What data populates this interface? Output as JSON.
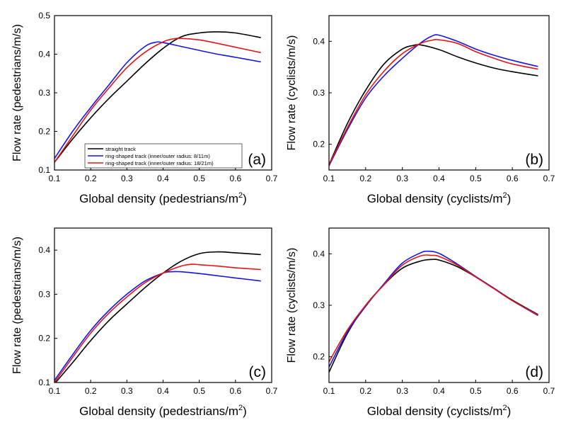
{
  "chart_data": [
    {
      "type": "line",
      "panel_label": "(a)",
      "xlabel": "Global density (pedestrians/m",
      "xlabel_sup": "2",
      "xlabel_end": ")",
      "ylabel": "Flow rate (pedestrians/m/s)",
      "xlim": [
        0.1,
        0.7
      ],
      "ylim": [
        0.1,
        0.5
      ],
      "xticks": [
        "0.1",
        "0.2",
        "0.3",
        "0.4",
        "0.5",
        "0.6",
        "0.7"
      ],
      "yticks": [
        "0.1",
        "0.2",
        "0.3",
        "0.4",
        "0.5"
      ],
      "legend": "lower-center",
      "series": [
        {
          "name": "straight track",
          "color": "#000000",
          "x": [
            0.1,
            0.15,
            0.2,
            0.25,
            0.3,
            0.35,
            0.4,
            0.45,
            0.5,
            0.55,
            0.6,
            0.67
          ],
          "y": [
            0.12,
            0.18,
            0.235,
            0.285,
            0.33,
            0.375,
            0.415,
            0.445,
            0.455,
            0.458,
            0.455,
            0.443
          ]
        },
        {
          "name": "ring-shaped track (inner/outer radius: 8/11m)",
          "color": "#1515e6",
          "x": [
            0.1,
            0.15,
            0.2,
            0.25,
            0.3,
            0.35,
            0.38,
            0.4,
            0.45,
            0.5,
            0.55,
            0.6,
            0.67
          ],
          "y": [
            0.13,
            0.2,
            0.262,
            0.32,
            0.378,
            0.42,
            0.431,
            0.43,
            0.42,
            0.41,
            0.4,
            0.392,
            0.38
          ]
        },
        {
          "name": "ring-shaped track (inner/outer radius: 18/21m)",
          "color": "#e61515",
          "x": [
            0.1,
            0.15,
            0.2,
            0.25,
            0.3,
            0.35,
            0.4,
            0.43,
            0.45,
            0.5,
            0.55,
            0.6,
            0.67
          ],
          "y": [
            0.12,
            0.188,
            0.255,
            0.312,
            0.365,
            0.405,
            0.432,
            0.44,
            0.441,
            0.437,
            0.428,
            0.418,
            0.404
          ]
        }
      ]
    },
    {
      "type": "line",
      "panel_label": "(b)",
      "xlabel": "Global density (cyclists/m",
      "xlabel_sup": "2",
      "xlabel_end": ")",
      "ylabel": "Flow rate (cyclists/m/s)",
      "xlim": [
        0.1,
        0.7
      ],
      "ylim": [
        0.15,
        0.45
      ],
      "xticks": [
        "0.1",
        "0.2",
        "0.3",
        "0.4",
        "0.5",
        "0.6",
        "0.7"
      ],
      "yticks": [
        "0.2",
        "0.3",
        "0.4"
      ],
      "series": [
        {
          "color": "#000000",
          "x": [
            0.1,
            0.15,
            0.2,
            0.25,
            0.3,
            0.33,
            0.35,
            0.4,
            0.45,
            0.5,
            0.55,
            0.6,
            0.67
          ],
          "y": [
            0.16,
            0.24,
            0.305,
            0.356,
            0.385,
            0.392,
            0.393,
            0.384,
            0.37,
            0.358,
            0.348,
            0.341,
            0.333
          ]
        },
        {
          "color": "#1515e6",
          "x": [
            0.1,
            0.15,
            0.2,
            0.25,
            0.3,
            0.35,
            0.38,
            0.4,
            0.45,
            0.5,
            0.55,
            0.6,
            0.67
          ],
          "y": [
            0.158,
            0.228,
            0.29,
            0.333,
            0.367,
            0.397,
            0.41,
            0.412,
            0.4,
            0.385,
            0.373,
            0.363,
            0.351
          ]
        },
        {
          "color": "#e61515",
          "x": [
            0.1,
            0.15,
            0.2,
            0.25,
            0.3,
            0.35,
            0.38,
            0.4,
            0.45,
            0.5,
            0.55,
            0.6,
            0.67
          ],
          "y": [
            0.16,
            0.232,
            0.296,
            0.342,
            0.376,
            0.396,
            0.402,
            0.403,
            0.396,
            0.38,
            0.367,
            0.356,
            0.346
          ]
        }
      ]
    },
    {
      "type": "line",
      "panel_label": "(c)",
      "xlabel": "Global density (pedestrians/m",
      "xlabel_sup": "2",
      "xlabel_end": ")",
      "ylabel": "Flow rate (pedestrians/m/s)",
      "xlim": [
        0.1,
        0.7
      ],
      "ylim": [
        0.1,
        0.45
      ],
      "xticks": [
        "0.1",
        "0.2",
        "0.3",
        "0.4",
        "0.5",
        "0.6",
        "0.7"
      ],
      "yticks": [
        "0.1",
        "0.2",
        "0.3",
        "0.4"
      ],
      "series": [
        {
          "color": "#000000",
          "x": [
            0.1,
            0.15,
            0.2,
            0.25,
            0.3,
            0.35,
            0.4,
            0.45,
            0.5,
            0.55,
            0.6,
            0.67
          ],
          "y": [
            0.097,
            0.145,
            0.195,
            0.24,
            0.278,
            0.315,
            0.348,
            0.375,
            0.392,
            0.396,
            0.394,
            0.39
          ]
        },
        {
          "color": "#1515e6",
          "x": [
            0.1,
            0.15,
            0.2,
            0.25,
            0.3,
            0.35,
            0.4,
            0.42,
            0.45,
            0.5,
            0.55,
            0.6,
            0.67
          ],
          "y": [
            0.105,
            0.163,
            0.218,
            0.263,
            0.3,
            0.33,
            0.348,
            0.351,
            0.351,
            0.347,
            0.342,
            0.337,
            0.33
          ]
        },
        {
          "color": "#e61515",
          "x": [
            0.1,
            0.15,
            0.2,
            0.25,
            0.3,
            0.35,
            0.4,
            0.45,
            0.48,
            0.5,
            0.55,
            0.6,
            0.67
          ],
          "y": [
            0.1,
            0.157,
            0.212,
            0.257,
            0.294,
            0.326,
            0.348,
            0.364,
            0.368,
            0.367,
            0.364,
            0.36,
            0.356
          ]
        }
      ]
    },
    {
      "type": "line",
      "panel_label": "(d)",
      "xlabel": "Global density (cyclists/m",
      "xlabel_sup": "2",
      "xlabel_end": ")",
      "ylabel": "Flow rate (cyclists/m/s)",
      "xlim": [
        0.1,
        0.7
      ],
      "ylim": [
        0.15,
        0.45
      ],
      "xticks": [
        "0.1",
        "0.2",
        "0.3",
        "0.4",
        "0.5",
        "0.6",
        "0.7"
      ],
      "yticks": [
        "0.2",
        "0.3",
        "0.4"
      ],
      "series": [
        {
          "color": "#000000",
          "x": [
            0.1,
            0.15,
            0.2,
            0.25,
            0.3,
            0.35,
            0.38,
            0.4,
            0.45,
            0.5,
            0.55,
            0.6,
            0.67
          ],
          "y": [
            0.17,
            0.245,
            0.3,
            0.34,
            0.372,
            0.386,
            0.389,
            0.388,
            0.375,
            0.355,
            0.333,
            0.31,
            0.282
          ]
        },
        {
          "color": "#1515e6",
          "x": [
            0.1,
            0.15,
            0.2,
            0.25,
            0.3,
            0.35,
            0.37,
            0.4,
            0.45,
            0.5,
            0.55,
            0.6,
            0.67
          ],
          "y": [
            0.18,
            0.248,
            0.298,
            0.342,
            0.382,
            0.402,
            0.405,
            0.401,
            0.38,
            0.356,
            0.333,
            0.309,
            0.28
          ]
        },
        {
          "color": "#e61515",
          "x": [
            0.1,
            0.15,
            0.2,
            0.25,
            0.3,
            0.35,
            0.38,
            0.4,
            0.45,
            0.5,
            0.55,
            0.6,
            0.67
          ],
          "y": [
            0.19,
            0.252,
            0.3,
            0.34,
            0.378,
            0.396,
            0.397,
            0.395,
            0.378,
            0.355,
            0.332,
            0.309,
            0.281
          ]
        }
      ]
    }
  ]
}
